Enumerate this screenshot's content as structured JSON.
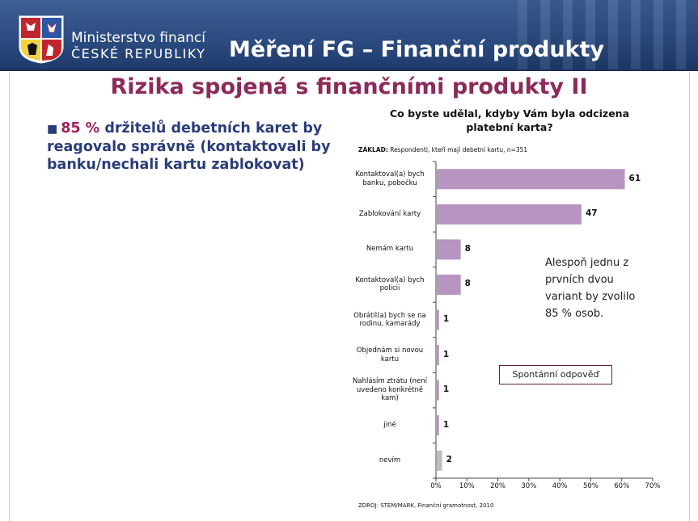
{
  "header": {
    "ministry_line1": "Ministerstvo financí",
    "ministry_line2": "ČESKÉ REPUBLIKY",
    "title": "Měření FG – Finanční produkty"
  },
  "page_title": "Rizika spojená s finančními produkty II",
  "bullet": {
    "percent": "85 %",
    "text": "držitelů debetních karet by reagovalo správně (kontaktovali by banku/nechali kartu zablokovat)"
  },
  "note": "Alespoň jednu z prvních dvou variant by zvolilo 85 % osob.",
  "badge": "Spontánní odpověď",
  "colors": {
    "bar": "#b795c0",
    "bar_grey": "#bdbdbd",
    "accent": "#8c2a5a",
    "header": "#2b4a7f"
  },
  "chart_data": {
    "type": "bar",
    "orientation": "horizontal",
    "title": "Co byste udělal, kdyby Vám byla odcizena platební karta?",
    "base_label": "ZÁKLAD:",
    "base_text": " Respondenti, kteří mají debetní kartu, n=351",
    "source": "ZDROJ: STEM/MARK, Finanční gramotnost, 2010",
    "categories": [
      "Kontaktoval(a) bych banku, pobočku",
      "Zablokování karty",
      "Nemám kartu",
      "Kontaktoval(a) bych policii",
      "Obrátil(a) bych se na rodinu, kamarády",
      "Objednám si novou kartu",
      "Nahlásím ztrátu (není uvedeno konkrétně kam)",
      "jiné",
      "nevím"
    ],
    "values": [
      61,
      47,
      8,
      8,
      1,
      1,
      1,
      1,
      2
    ],
    "value_labels": [
      "61",
      "47",
      "8",
      "8",
      "1",
      "1",
      "1",
      "1",
      "2"
    ],
    "grey_last": true,
    "xlim": [
      0,
      70
    ],
    "ticks": [
      "0%",
      "10%",
      "20%",
      "30%",
      "40%",
      "50%",
      "60%",
      "70%"
    ],
    "grid": false
  }
}
